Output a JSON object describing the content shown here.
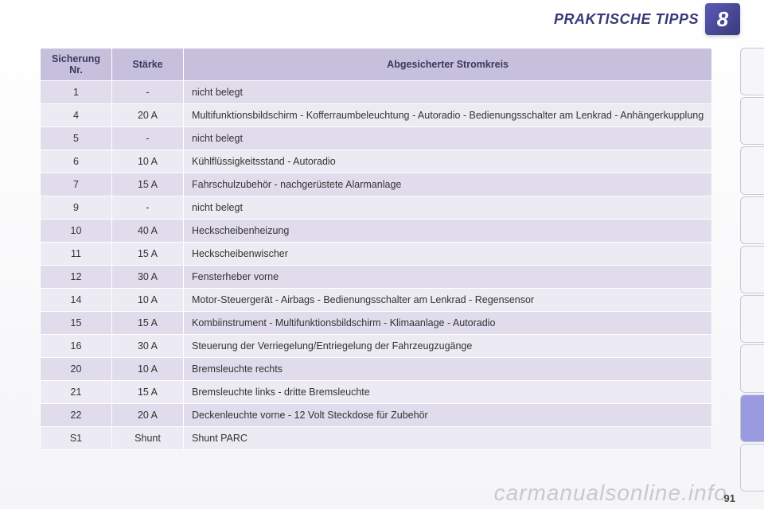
{
  "header": {
    "title": "PRAKTISCHE TIPPS",
    "chapter": "8"
  },
  "table": {
    "columns": {
      "nr": "Sicherung Nr.",
      "staerke": "Stärke",
      "kreis": "Abgesicherter Stromkreis"
    },
    "rows": [
      {
        "nr": "1",
        "staerke": "-",
        "kreis": "nicht belegt"
      },
      {
        "nr": "4",
        "staerke": "20 A",
        "kreis": "Multifunktionsbildschirm - Kofferraumbeleuchtung - Autoradio - Bedienungsschalter am Lenkrad - Anhängerkupplung"
      },
      {
        "nr": "5",
        "staerke": "-",
        "kreis": "nicht belegt"
      },
      {
        "nr": "6",
        "staerke": "10 A",
        "kreis": "Kühlflüssigkeitsstand - Autoradio"
      },
      {
        "nr": "7",
        "staerke": "15 A",
        "kreis": "Fahrschulzubehör - nachgerüstete Alarmanlage"
      },
      {
        "nr": "9",
        "staerke": "-",
        "kreis": "nicht belegt"
      },
      {
        "nr": "10",
        "staerke": "40 A",
        "kreis": "Heckscheibenheizung"
      },
      {
        "nr": "11",
        "staerke": "15 A",
        "kreis": "Heckscheibenwischer"
      },
      {
        "nr": "12",
        "staerke": "30 A",
        "kreis": "Fensterheber vorne"
      },
      {
        "nr": "14",
        "staerke": "10 A",
        "kreis": "Motor-Steuergerät - Airbags - Bedienungsschalter am Lenkrad - Regensensor"
      },
      {
        "nr": "15",
        "staerke": "15 A",
        "kreis": "Kombiinstrument - Multifunktionsbildschirm - Klimaanlage - Autoradio"
      },
      {
        "nr": "16",
        "staerke": "30 A",
        "kreis": "Steuerung der Verriegelung/Entriegelung der Fahrzeugzugänge"
      },
      {
        "nr": "20",
        "staerke": "10 A",
        "kreis": "Bremsleuchte rechts"
      },
      {
        "nr": "21",
        "staerke": "15 A",
        "kreis": "Bremsleuchte links - dritte Bremsleuchte"
      },
      {
        "nr": "22",
        "staerke": "20 A",
        "kreis": "Deckenleuchte vorne - 12 Volt Steckdose für Zubehör"
      },
      {
        "nr": "S1",
        "staerke": "Shunt",
        "kreis": "Shunt PARC"
      }
    ]
  },
  "sideTabs": {
    "count": 9,
    "activeIndex": 7
  },
  "pageNumber": "91",
  "watermark": "carmanualsonline.info",
  "colors": {
    "headerText": "#3a3a7a",
    "tableHeaderBg": "#c7c0dc",
    "rowEven": "#eceaf2",
    "rowOdd": "#e0dcec",
    "activeTab": "#9a9ae0"
  }
}
